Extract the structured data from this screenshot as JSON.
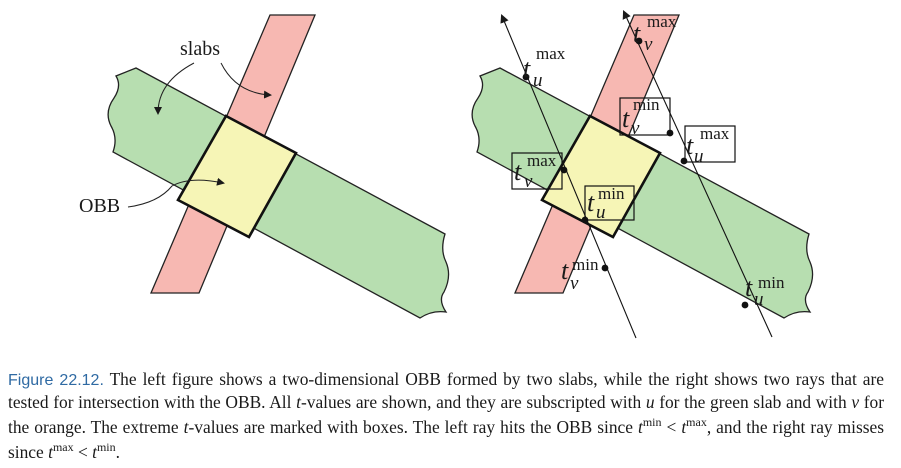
{
  "colors": {
    "green_slab": "#b7deb0",
    "orange_slab": "#f7b8b2",
    "obb": "#f6f5b6",
    "caption_label": "#2f6aa3"
  },
  "left_figure": {
    "slabs_label": "slabs",
    "obb_label": "OBB"
  },
  "right_figure": {
    "t": "t",
    "u": "u",
    "v": "v",
    "min": "min",
    "max": "max"
  },
  "caption": {
    "label": "Figure 22.12.",
    "text_1": "The left figure shows a two-dimensional OBB formed by two slabs, while the right shows two rays that are tested for intersection with the OBB. All ",
    "t1": "t",
    "text_2": "-values are shown, and they are subscripted with ",
    "u": "u",
    "text_3": " for the green slab and with ",
    "v": "v",
    "text_4": " for the orange. The extreme ",
    "t2": "t",
    "text_5": "-values are marked with boxes. The left ray hits the OBB since ",
    "t3": "t",
    "min1": "min",
    "lt1": " < ",
    "t4": "t",
    "max1": "max",
    "text_6": ", and the right ray misses since ",
    "t5": "t",
    "max2": "max",
    "lt2": " < ",
    "t6": "t",
    "min2": "min",
    "text_7": "."
  }
}
